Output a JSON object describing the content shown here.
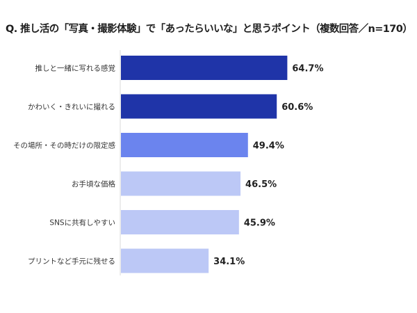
{
  "chart_data": {
    "type": "bar",
    "orientation": "horizontal",
    "title": "Q. 推し活の「写真・撮影体験」で「あったらいいな」と思うポイント（複数回答／n=170）",
    "categories": [
      "推しと一緒に写れる感覚",
      "かわいく・きれいに撮れる",
      "その場所・その時だけの限定感",
      "お手頃な価格",
      "SNSに共有しやすい",
      "プリントなど手元に残せる"
    ],
    "values": [
      64.7,
      60.6,
      49.4,
      46.5,
      45.9,
      34.1
    ],
    "value_labels": [
      "64.7%",
      "60.6%",
      "49.4%",
      "46.5%",
      "45.9%",
      "34.1%"
    ],
    "bar_colors": [
      "#1f34a8",
      "#1f34a8",
      "#6b84ee",
      "#bcc8f6",
      "#bcc8f6",
      "#bcc8f6"
    ],
    "xlim": [
      0,
      100
    ],
    "grid": false,
    "legend": "none"
  }
}
